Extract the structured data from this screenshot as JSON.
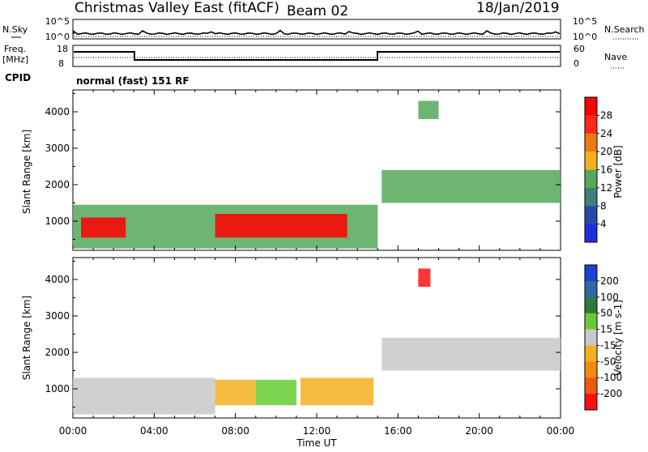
{
  "header": {
    "radar": "Christmas Valley East (fitACF)",
    "beam": "Beam 02",
    "date": "18/Jan/2019"
  },
  "noise_panel": {
    "left_label": "N.Sky",
    "right_label": "N.Search",
    "left_ticks": [
      "10^5",
      "10^0"
    ],
    "right_ticks": [
      "10^5",
      "10^0"
    ]
  },
  "freq_panel": {
    "left_label_line1": "Freq.",
    "left_label_line2": "[MHz]",
    "right_label": "Nave",
    "left_ticks": [
      "18",
      "8"
    ],
    "right_ticks": [
      "60",
      "0"
    ]
  },
  "cpid": {
    "label": "CPID",
    "text": "normal (fast) 151 RF"
  },
  "colors": {
    "power_scale": [
      "#1f2fe0",
      "#274aa8",
      "#3f7f7a",
      "#55a85a",
      "#f2b21c",
      "#f07a10",
      "#ff2a1a",
      "#ff0000"
    ],
    "velocity_scale": [
      "#2040d0",
      "#2e6aa8",
      "#2d7a3a",
      "#66cc33",
      "#c8c8c8",
      "#f5b020",
      "#f08a10",
      "#f05a10",
      "#ff1010"
    ]
  },
  "chart_data": [
    {
      "type": "heatmap",
      "title": "Power",
      "ylabel": "Slant Range [km]",
      "xlabel": "",
      "x_ticks": [
        "00:00",
        "04:00",
        "08:00",
        "12:00",
        "16:00",
        "20:00",
        "00:00"
      ],
      "y_ticks": [
        "1000",
        "2000",
        "3000",
        "4000"
      ],
      "ylim": [
        200,
        4600
      ],
      "xlim_hours": [
        0,
        24
      ],
      "colorbar": {
        "label": "Power [dB]",
        "ticks": [
          "4",
          "8",
          "12",
          "16",
          "20",
          "24",
          "28"
        ],
        "range": [
          0,
          30
        ]
      },
      "regions": [
        {
          "t0": 0.0,
          "t1": 15.0,
          "r0": 250,
          "r1": 1450,
          "value": 14
        },
        {
          "t0": 0.4,
          "t1": 2.6,
          "r0": 550,
          "r1": 1100,
          "value": 28
        },
        {
          "t0": 7.0,
          "t1": 13.5,
          "r0": 550,
          "r1": 1200,
          "value": 27
        },
        {
          "t0": 15.2,
          "t1": 24.0,
          "r0": 1500,
          "r1": 2400,
          "value": 14
        },
        {
          "t0": 17.0,
          "t1": 18.0,
          "r0": 3800,
          "r1": 4300,
          "value": 12
        }
      ]
    },
    {
      "type": "heatmap",
      "title": "Velocity",
      "ylabel": "Slant Range [km]",
      "xlabel": "Time UT",
      "x_ticks": [
        "00:00",
        "04:00",
        "08:00",
        "12:00",
        "16:00",
        "20:00",
        "00:00"
      ],
      "y_ticks": [
        "1000",
        "2000",
        "3000",
        "4000"
      ],
      "ylim": [
        200,
        4600
      ],
      "xlim_hours": [
        0,
        24
      ],
      "colorbar": {
        "label": "Velocity [m s-1]",
        "ticks": [
          "200",
          "100",
          "50",
          "15",
          "-15",
          "-50",
          "-100",
          "-200"
        ],
        "range": [
          -250,
          250
        ]
      },
      "regions": [
        {
          "t0": 0.0,
          "t1": 7.0,
          "r0": 300,
          "r1": 1300,
          "value": 0
        },
        {
          "t0": 7.0,
          "t1": 9.0,
          "r0": 550,
          "r1": 1250,
          "value": -40
        },
        {
          "t0": 9.0,
          "t1": 11.0,
          "r0": 550,
          "r1": 1250,
          "value": 30
        },
        {
          "t0": 11.2,
          "t1": 14.8,
          "r0": 550,
          "r1": 1300,
          "value": -45
        },
        {
          "t0": 15.2,
          "t1": 24.0,
          "r0": 1500,
          "r1": 2400,
          "value": 0
        },
        {
          "t0": 17.0,
          "t1": 17.6,
          "r0": 3800,
          "r1": 4300,
          "value": -220
        }
      ]
    }
  ]
}
